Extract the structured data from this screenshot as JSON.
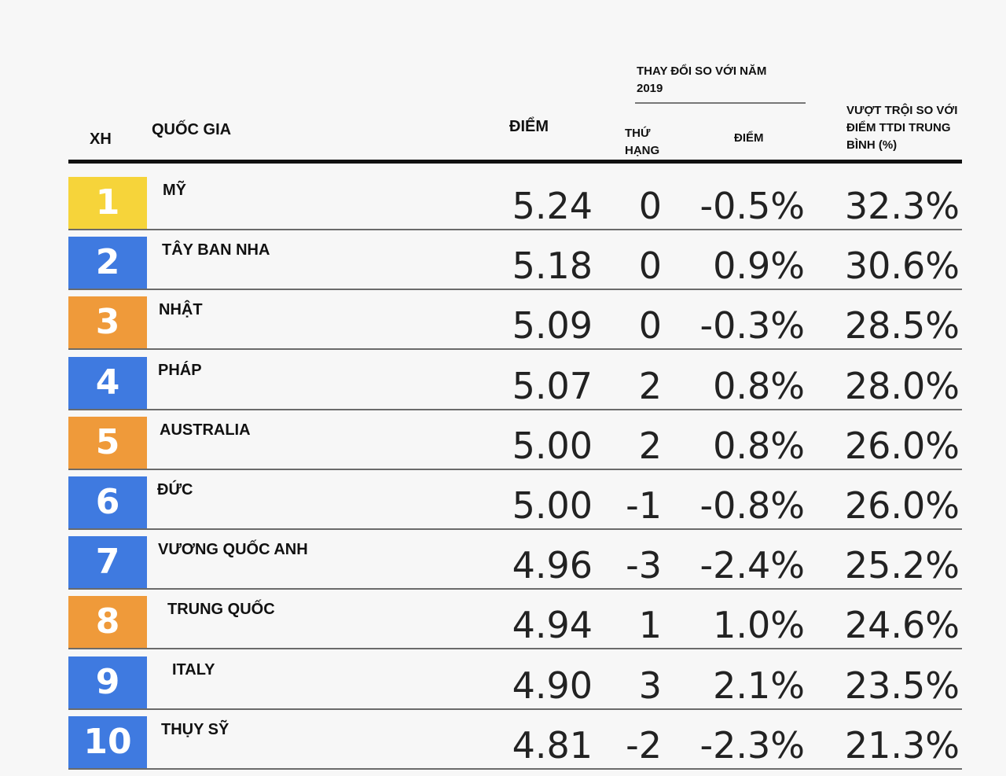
{
  "header": {
    "rank": "XH",
    "country": "QUỐC GIA",
    "score": "ĐIỂM",
    "change_group": "THAY ĐỔI SO VỚI NĂM 2019",
    "rank_change": "THỨ HẠNG",
    "score_change": "ĐIỂM",
    "excel": "VƯỢT TRỘI SO VỚI ĐIỂM TTDI TRUNG BÌNH (%)"
  },
  "colors": {
    "yellow": "#f6d43a",
    "blue": "#3f7ae0",
    "orange": "#ef9a3a"
  },
  "chart_data": {
    "type": "table",
    "columns": [
      "XH",
      "QUỐC GIA",
      "ĐIỂM",
      "THỨ HẠNG",
      "ĐIỂM",
      "VƯỢT TRỘI SO VỚI ĐIỂM TTDI TRUNG BÌNH (%)"
    ],
    "rows": [
      {
        "rank": "1",
        "country": "MỸ",
        "score": "5.24",
        "rank_change": "0",
        "score_change": "-0.5%",
        "excel": "32.3%",
        "badge_color": "yellow"
      },
      {
        "rank": "2",
        "country": "TÂY BAN NHA",
        "score": "5.18",
        "rank_change": "0",
        "score_change": "0.9%",
        "excel": "30.6%",
        "badge_color": "blue"
      },
      {
        "rank": "3",
        "country": "NHẬT",
        "score": "5.09",
        "rank_change": "0",
        "score_change": "-0.3%",
        "excel": "28.5%",
        "badge_color": "orange"
      },
      {
        "rank": "4",
        "country": "PHÁP",
        "score": "5.07",
        "rank_change": "2",
        "score_change": "0.8%",
        "excel": "28.0%",
        "badge_color": "blue"
      },
      {
        "rank": "5",
        "country": "AUSTRALIA",
        "score": "5.00",
        "rank_change": "2",
        "score_change": "0.8%",
        "excel": "26.0%",
        "badge_color": "orange"
      },
      {
        "rank": "6",
        "country": "ĐỨC",
        "score": "5.00",
        "rank_change": "-1",
        "score_change": "-0.8%",
        "excel": "26.0%",
        "badge_color": "blue"
      },
      {
        "rank": "7",
        "country": "VƯƠNG QUỐC ANH",
        "score": "4.96",
        "rank_change": "-3",
        "score_change": "-2.4%",
        "excel": "25.2%",
        "badge_color": "blue"
      },
      {
        "rank": "8",
        "country": "TRUNG QUỐC",
        "score": "4.94",
        "rank_change": "1",
        "score_change": "1.0%",
        "excel": "24.6%",
        "badge_color": "orange"
      },
      {
        "rank": "9",
        "country": "ITALY",
        "score": "4.90",
        "rank_change": "3",
        "score_change": "2.1%",
        "excel": "23.5%",
        "badge_color": "blue"
      },
      {
        "rank": "10",
        "country": "THỤY SỸ",
        "score": "4.81",
        "rank_change": "-2",
        "score_change": "-2.3%",
        "excel": "21.3%",
        "badge_color": "blue"
      }
    ]
  }
}
